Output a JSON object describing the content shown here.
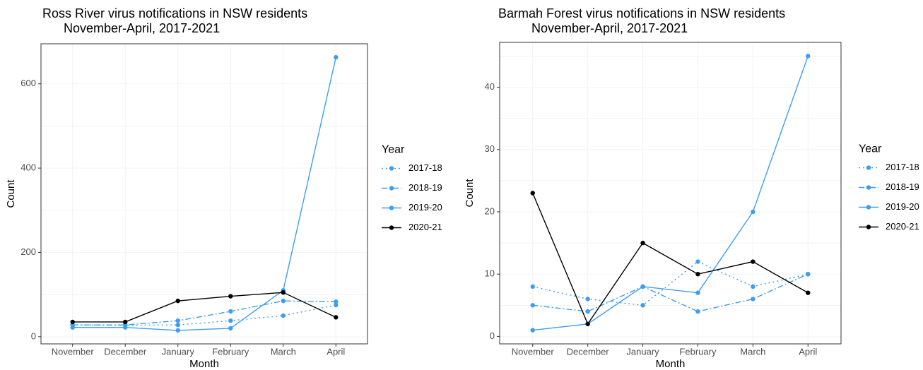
{
  "chart_data": [
    {
      "type": "line",
      "title": "Ross River virus notifications in NSW residents",
      "subtitle": "November-April, 2017-2021",
      "x_label": "Month",
      "y_label": "Count",
      "categories": [
        "November",
        "December",
        "January",
        "February",
        "March",
        "April"
      ],
      "ylim": [
        -17,
        695
      ],
      "yticks": [
        0,
        200,
        400,
        600
      ],
      "y_minor_grid": [
        100,
        300,
        500
      ],
      "grid": true,
      "legend_title": "Year",
      "legend_position": "right",
      "series": [
        {
          "name": "2017-18",
          "color": "#3d9ef0",
          "linetype": "dotted",
          "values": [
            28,
            27,
            28,
            38,
            50,
            75
          ]
        },
        {
          "name": "2018-19",
          "color": "#3d9ef0",
          "linetype": "dashed",
          "values": [
            28,
            28,
            38,
            60,
            85,
            83
          ]
        },
        {
          "name": "2019-20",
          "color": "#3d9ef0",
          "linetype": "solid",
          "values": [
            22,
            22,
            15,
            20,
            110,
            663
          ]
        },
        {
          "name": "2020-21",
          "color": "#000000",
          "linetype": "solid",
          "values": [
            35,
            35,
            85,
            96,
            105,
            46
          ]
        }
      ]
    },
    {
      "type": "line",
      "title": "Barmah Forest virus notifications in NSW residents",
      "subtitle": "November-April, 2017-2021",
      "x_label": "Month",
      "y_label": "Count",
      "categories": [
        "November",
        "December",
        "January",
        "February",
        "March",
        "April"
      ],
      "ylim": [
        -1.2,
        47.2
      ],
      "yticks": [
        0,
        10,
        20,
        30,
        40
      ],
      "y_minor_grid": [
        5,
        15,
        25,
        35,
        45
      ],
      "grid": true,
      "legend_title": "Year",
      "legend_position": "right",
      "series": [
        {
          "name": "2017-18",
          "color": "#3d9ef0",
          "linetype": "dotted",
          "values": [
            8,
            6,
            5,
            12,
            8,
            10
          ]
        },
        {
          "name": "2018-19",
          "color": "#3d9ef0",
          "linetype": "dashed",
          "values": [
            5,
            4,
            8,
            4,
            6,
            10
          ]
        },
        {
          "name": "2019-20",
          "color": "#3d9ef0",
          "linetype": "solid",
          "values": [
            1,
            2,
            8,
            7,
            20,
            45
          ]
        },
        {
          "name": "2020-21",
          "color": "#000000",
          "linetype": "solid",
          "values": [
            23,
            2,
            15,
            10,
            12,
            7
          ]
        }
      ]
    }
  ]
}
